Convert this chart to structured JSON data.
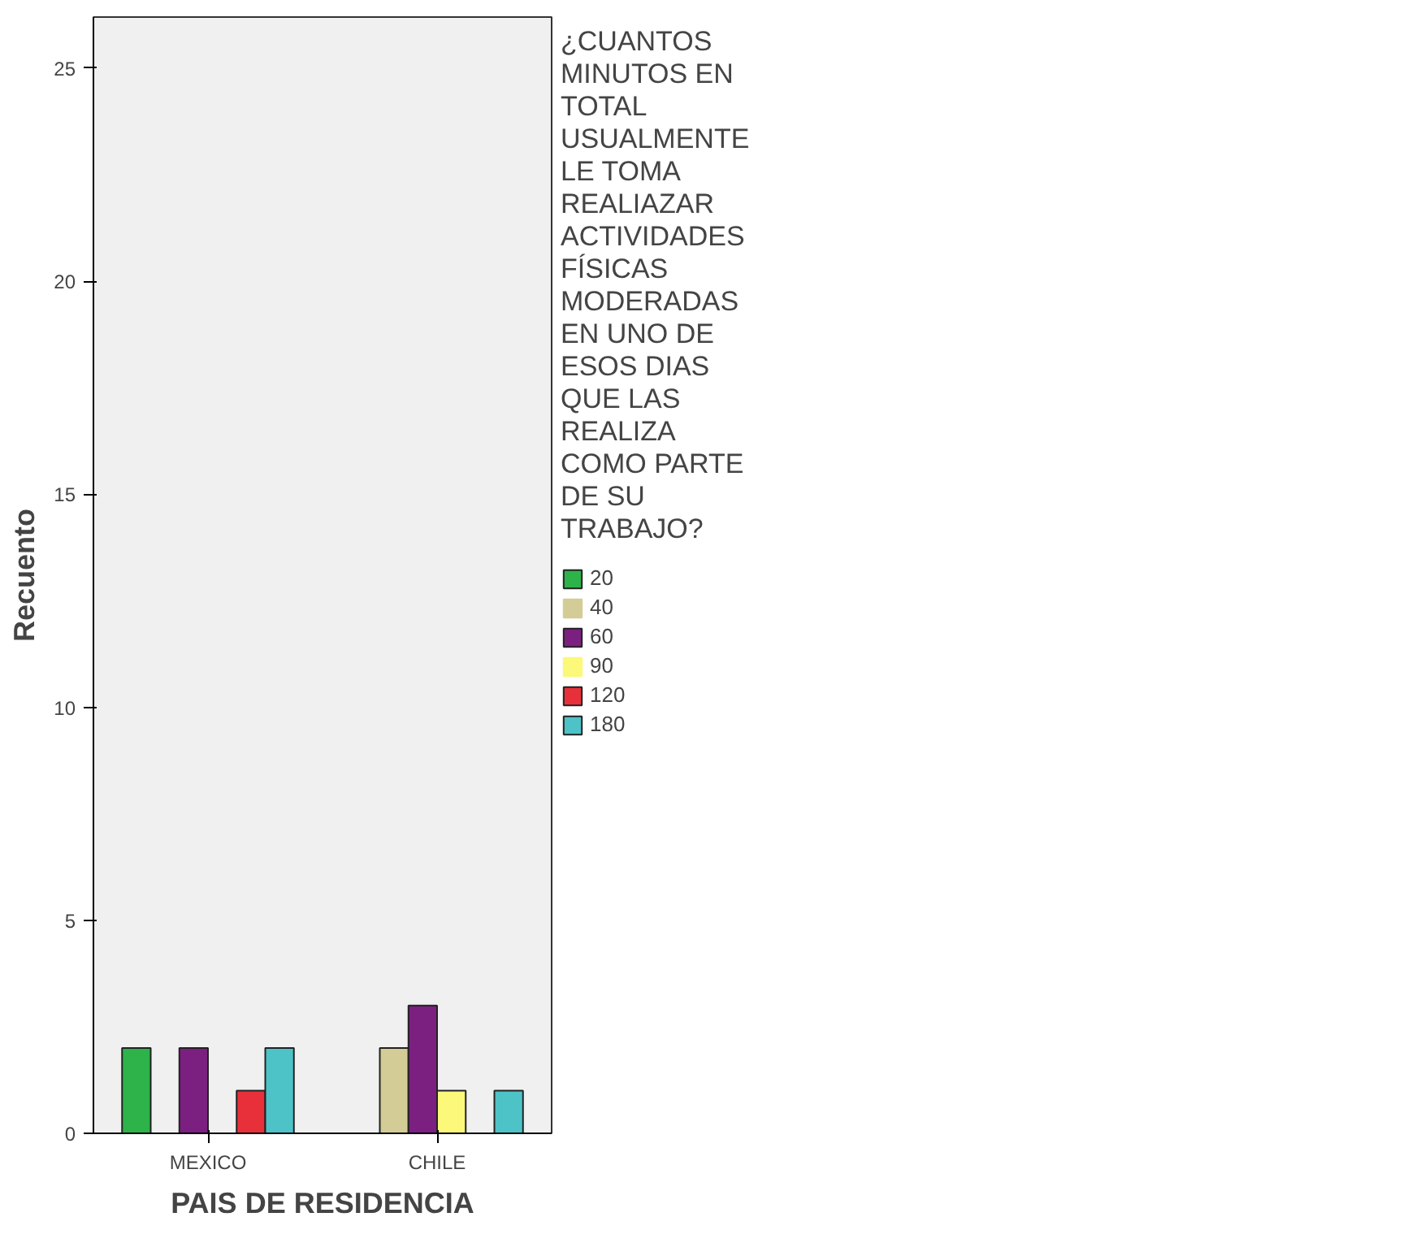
{
  "chart_data": {
    "type": "bar",
    "xlabel": "PAIS DE RESIDENCIA",
    "ylabel": "Recuento",
    "legend_title": "¿CUANTOS MINUTOS EN TOTAL USUALMENTE LE TOMA REALIAZAR ACTIVIDADES FÍSICAS MODERADAS EN UNO DE ESOS DIAS QUE LAS REALIZA COMO PARTE DE SU TRABAJO?",
    "categories": [
      "MEXICO",
      "CHILE"
    ],
    "ylim": [
      0,
      26.2
    ],
    "yticks": [
      0,
      5,
      10,
      15,
      20,
      25
    ],
    "grid": false,
    "legend": "right",
    "series": [
      {
        "name": "20",
        "color": "#2db34a",
        "values": [
          2,
          0
        ]
      },
      {
        "name": "40",
        "color": "#d4cc96",
        "values": [
          0,
          2
        ]
      },
      {
        "name": "60",
        "color": "#7b2080",
        "values": [
          2,
          3
        ]
      },
      {
        "name": "90",
        "color": "#fbf87a",
        "values": [
          0,
          1
        ]
      },
      {
        "name": "120",
        "color": "#e8303a",
        "values": [
          1,
          0
        ]
      },
      {
        "name": "180",
        "color": "#4dc3c8",
        "values": [
          2,
          1
        ]
      }
    ]
  }
}
